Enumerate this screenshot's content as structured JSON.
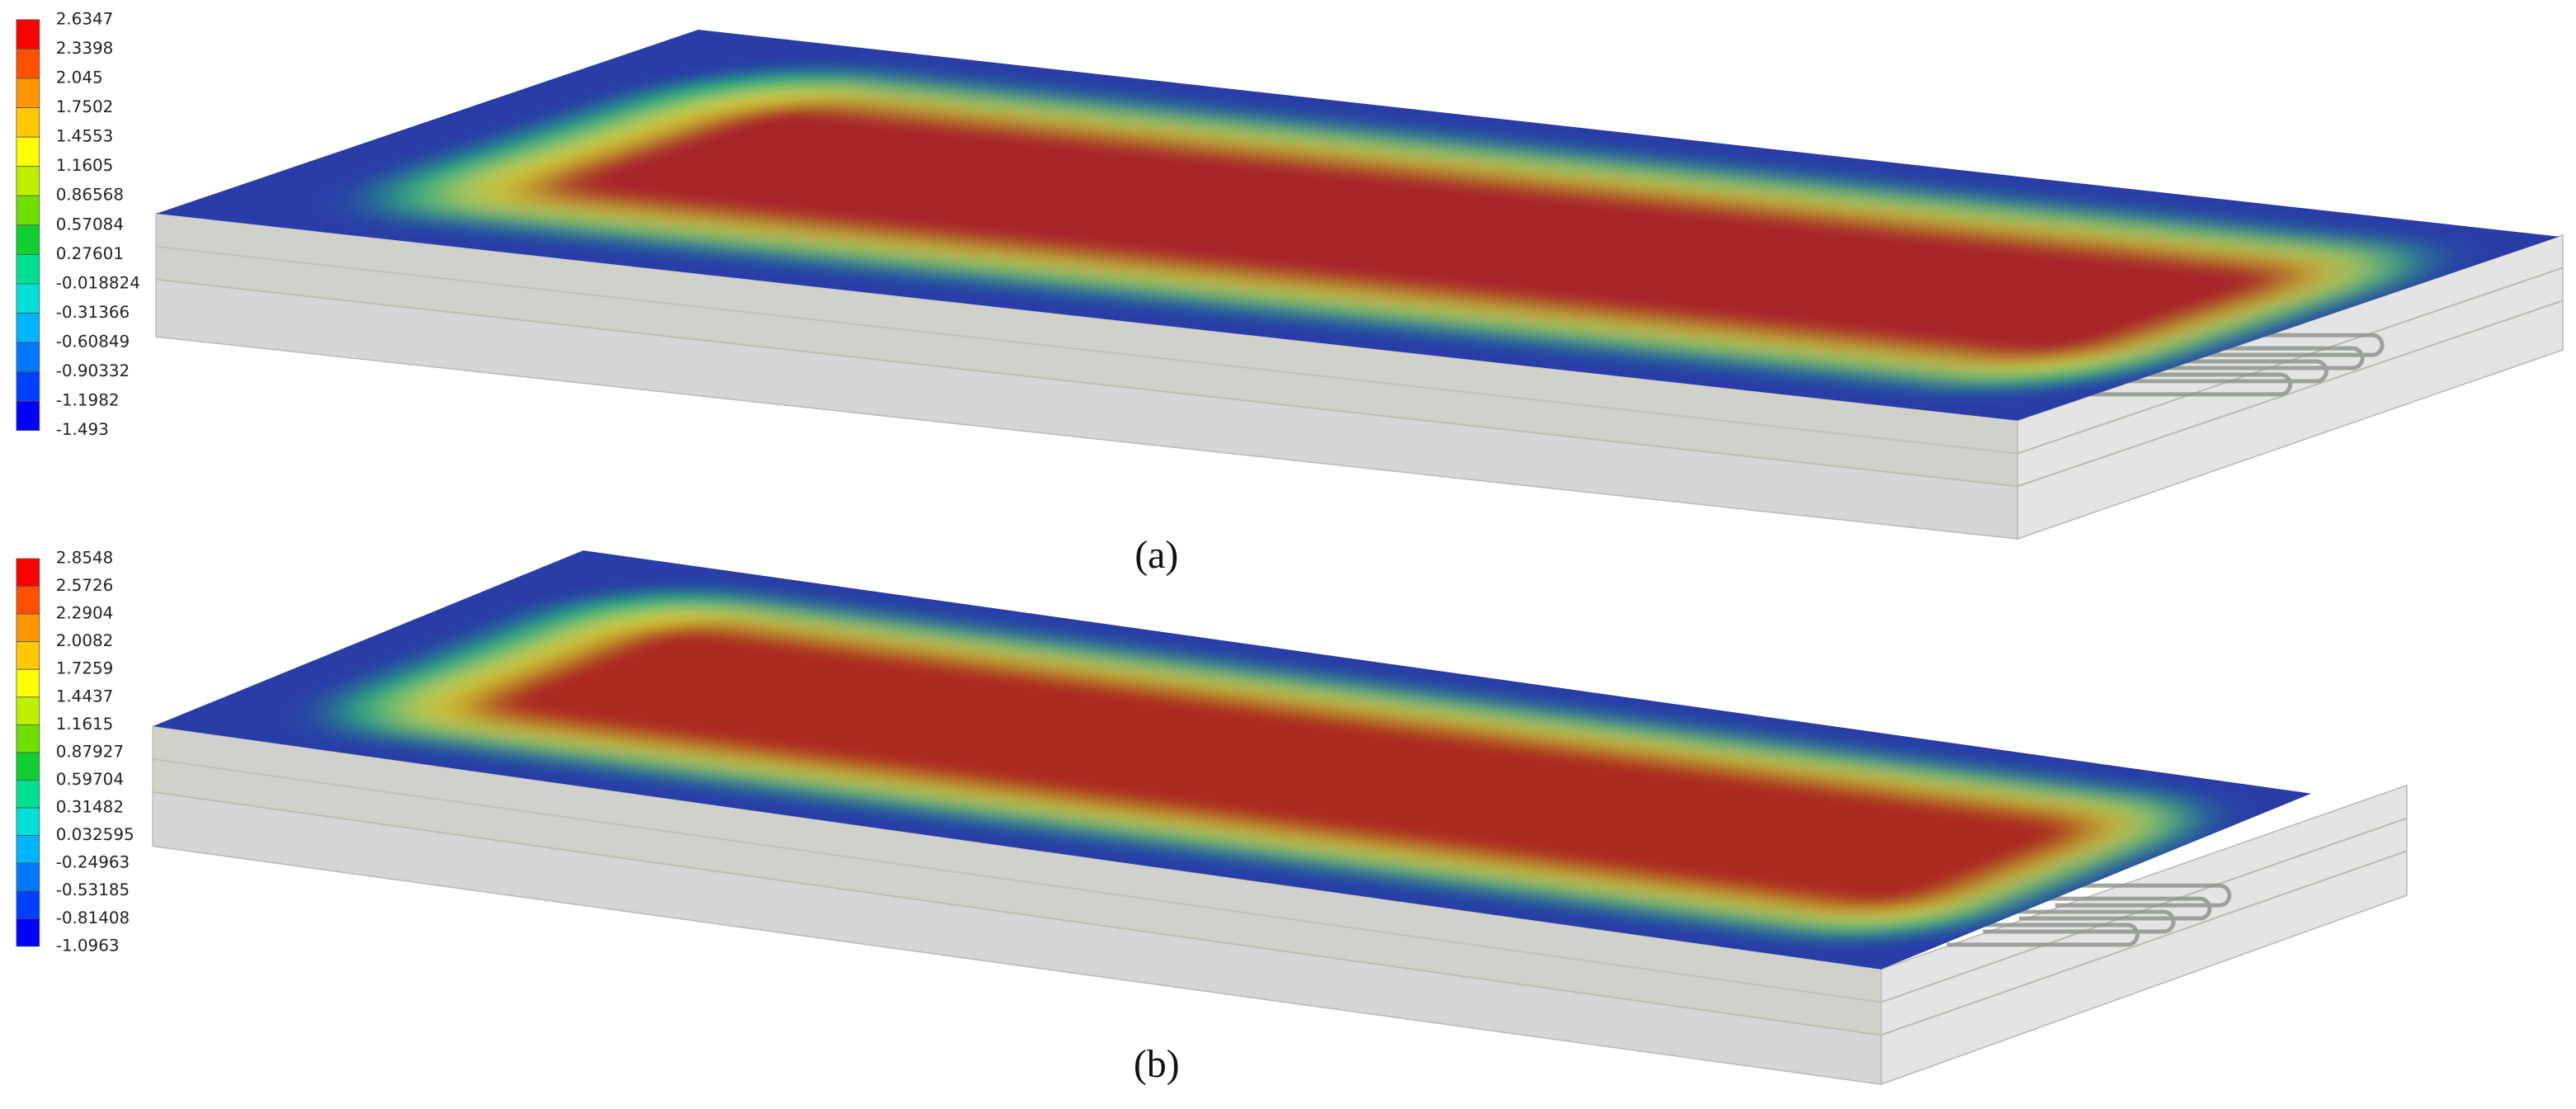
{
  "figure": {
    "panels": [
      {
        "caption": "(a)",
        "legend": [
          "2.6347",
          "2.3398",
          "2.045",
          "1.7502",
          "1.4553",
          "1.1605",
          "0.86568",
          "0.57084",
          "0.27601",
          "-0.018824",
          "-0.31366",
          "-0.60849",
          "-0.90332",
          "-1.1982",
          "-1.493"
        ]
      },
      {
        "caption": "(b)",
        "legend": [
          "2.8548",
          "2.5726",
          "2.2904",
          "2.0082",
          "1.7259",
          "1.4437",
          "1.1615",
          "0.87927",
          "0.59704",
          "0.31482",
          "0.032595",
          "-0.24963",
          "-0.53185",
          "-0.81408",
          "-1.0963"
        ]
      }
    ]
  }
}
